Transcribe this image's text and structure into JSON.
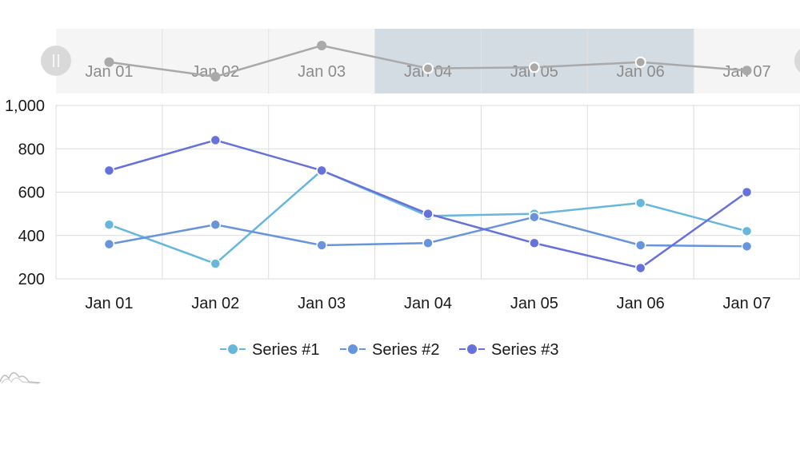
{
  "chart_data": {
    "type": "line",
    "categories": [
      "Jan 01",
      "Jan 02",
      "Jan 03",
      "Jan 04",
      "Jan 05",
      "Jan 06",
      "Jan 07"
    ],
    "series": [
      {
        "name": "Series #1",
        "color": "#67b7dc",
        "values": [
          450,
          270,
          700,
          490,
          500,
          550,
          420
        ]
      },
      {
        "name": "Series #2",
        "color": "#6794dc",
        "values": [
          360,
          450,
          355,
          365,
          485,
          355,
          350
        ]
      },
      {
        "name": "Series #3",
        "color": "#6771dc",
        "values": [
          700,
          840,
          700,
          500,
          365,
          250,
          600
        ]
      }
    ],
    "y_ticks": [
      "1,000",
      "800",
      "600",
      "400",
      "200"
    ],
    "y_tick_values": [
      1000,
      800,
      600,
      400,
      200
    ],
    "ylim": [
      200,
      1000
    ],
    "grid": true,
    "legend_position": "bottom-center",
    "navigator": {
      "labels": [
        "Jan 01",
        "Jan 02",
        "Jan 03",
        "Jan 04",
        "Jan 05",
        "Jan 06",
        "Jan 07"
      ],
      "values": [
        720,
        650,
        800,
        690,
        695,
        720,
        680
      ],
      "color": "#a9a9a9",
      "selection_start_category": "Jan 04",
      "selection_end_category": "Jan 06",
      "selection_color": "#d3dce3"
    }
  }
}
